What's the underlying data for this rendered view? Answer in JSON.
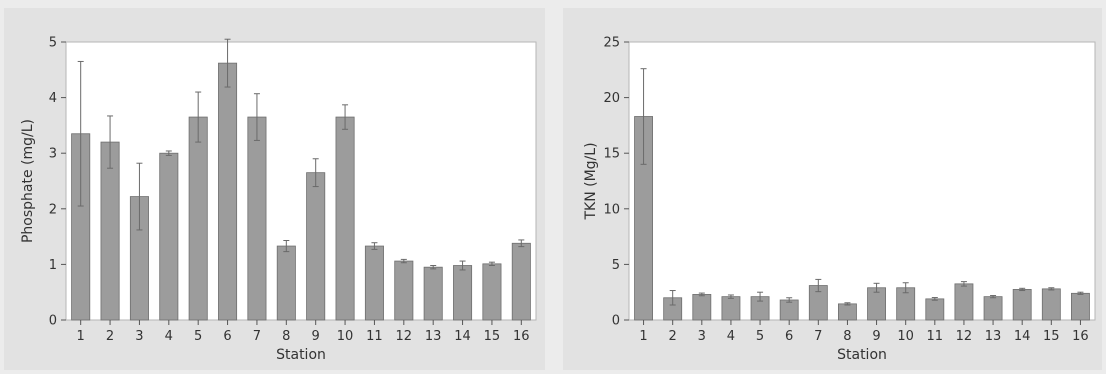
{
  "chart_data": [
    {
      "type": "bar",
      "title": "",
      "xlabel": "Station",
      "ylabel": "Phosphate (mg/L)",
      "ylim": [
        0,
        5
      ],
      "yticks": [
        0,
        1,
        2,
        3,
        4,
        5
      ],
      "grid": false,
      "error_bars": true,
      "colors": {
        "bar": "#9c9c9c",
        "bar_edge": "#6e6e6e",
        "error_bar": "#6a6a6a",
        "plot_bg": "#ffffff",
        "panel_bg": "#e2e2e2"
      },
      "categories": [
        "1",
        "2",
        "3",
        "4",
        "5",
        "6",
        "7",
        "8",
        "9",
        "10",
        "11",
        "12",
        "13",
        "14",
        "15",
        "16"
      ],
      "values": [
        3.35,
        3.2,
        2.22,
        3.0,
        3.65,
        4.62,
        3.65,
        1.33,
        2.65,
        3.65,
        1.33,
        1.06,
        0.95,
        0.98,
        1.01,
        1.38
      ],
      "errors": [
        1.3,
        0.47,
        0.6,
        0.04,
        0.45,
        0.43,
        0.42,
        0.1,
        0.25,
        0.22,
        0.06,
        0.03,
        0.03,
        0.08,
        0.03,
        0.06
      ]
    },
    {
      "type": "bar",
      "title": "",
      "xlabel": "Station",
      "ylabel": "TKN (Mg/L)",
      "ylim": [
        0,
        25
      ],
      "yticks": [
        0,
        5,
        10,
        15,
        20,
        25
      ],
      "grid": false,
      "error_bars": true,
      "colors": {
        "bar": "#9c9c9c",
        "bar_edge": "#6e6e6e",
        "error_bar": "#6a6a6a",
        "plot_bg": "#ffffff",
        "panel_bg": "#e2e2e2"
      },
      "categories": [
        "1",
        "2",
        "3",
        "4",
        "5",
        "6",
        "7",
        "8",
        "9",
        "10",
        "11",
        "12",
        "13",
        "14",
        "15",
        "16"
      ],
      "values": [
        18.3,
        2.0,
        2.3,
        2.1,
        2.1,
        1.8,
        3.1,
        1.45,
        2.9,
        2.9,
        1.9,
        3.25,
        2.1,
        2.75,
        2.8,
        2.4
      ],
      "errors": [
        4.3,
        0.65,
        0.12,
        0.15,
        0.4,
        0.2,
        0.55,
        0.1,
        0.4,
        0.45,
        0.12,
        0.2,
        0.1,
        0.1,
        0.1,
        0.1
      ]
    }
  ]
}
